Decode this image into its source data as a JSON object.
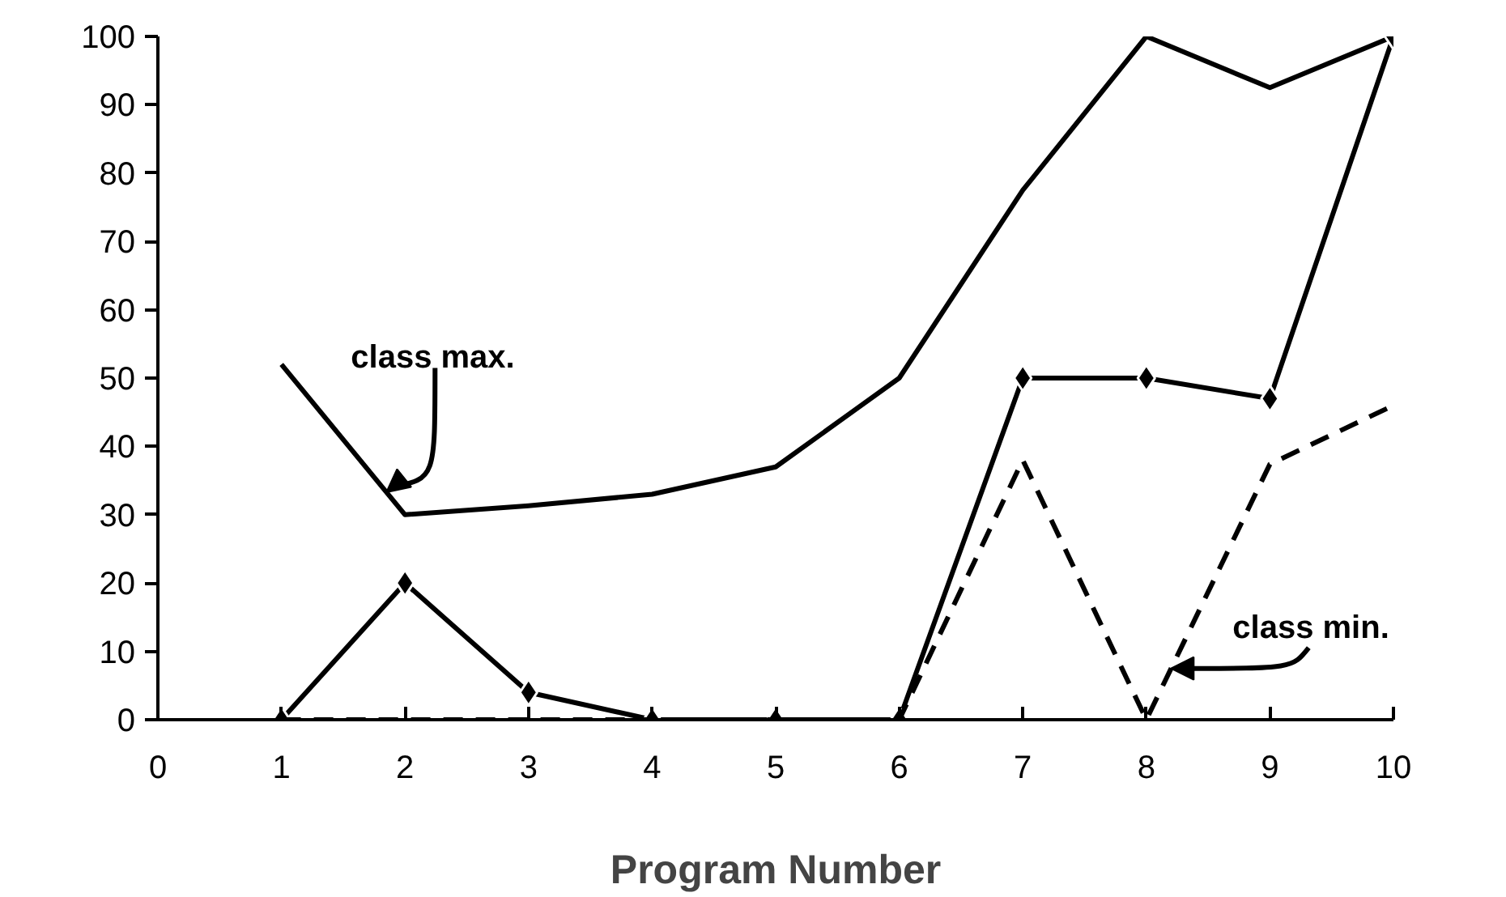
{
  "chart_data": {
    "type": "line",
    "xlabel": "Program Number",
    "x": [
      1,
      2,
      3,
      4,
      5,
      6,
      7,
      8,
      9,
      10
    ],
    "series": [
      {
        "color": "#000000",
        "marker": "none",
        "line_style": "solid",
        "values": [
          52,
          30,
          31.3,
          33,
          37,
          50,
          77.5,
          100,
          92.5,
          100
        ]
      },
      {
        "color": "#000000",
        "marker": "diamond",
        "line_style": "solid",
        "values": [
          0,
          20,
          4,
          0,
          0,
          0,
          50,
          50,
          47,
          100
        ]
      },
      {
        "color": "#000000",
        "marker": "none",
        "line_style": "dashed",
        "values": [
          0,
          0,
          0,
          0,
          0,
          0,
          38,
          0,
          37.4,
          46
        ]
      }
    ],
    "annotations": [
      {
        "text": "class max.",
        "x": 1.85,
        "y": 33.3
      },
      {
        "text": "class min.",
        "x": 8.2,
        "y": 7.5
      }
    ],
    "xlim": [
      0,
      10
    ],
    "ylim": [
      0,
      100
    ],
    "xticks": [
      0,
      1,
      2,
      3,
      4,
      5,
      6,
      7,
      8,
      9,
      10
    ],
    "yticks": [
      0,
      10,
      20,
      30,
      40,
      50,
      60,
      70,
      80,
      90,
      100
    ],
    "grid": false
  }
}
